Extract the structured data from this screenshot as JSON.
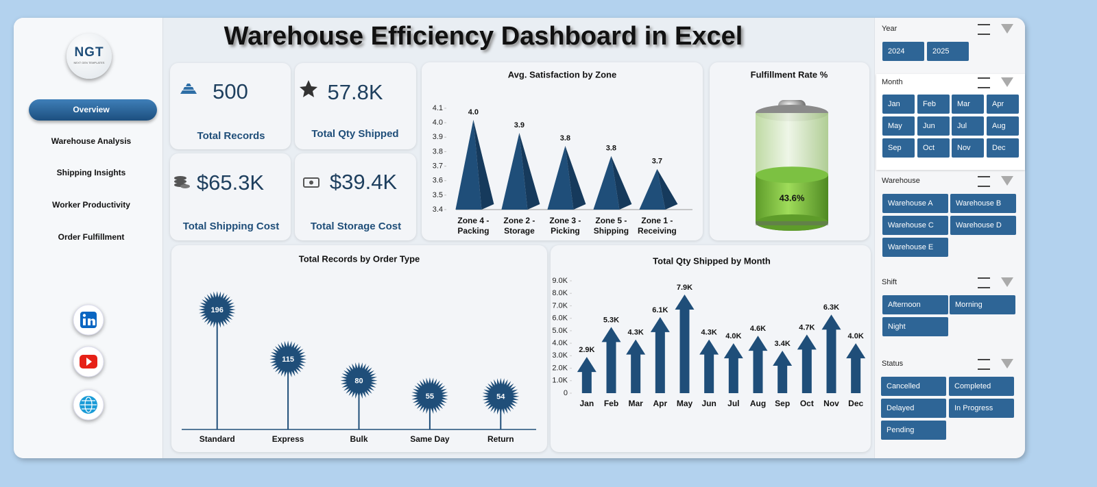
{
  "header": {
    "title": "Warehouse Efficiency Dashboard in Excel"
  },
  "logo": {
    "text": "NGT",
    "tagline": "NEXT GEN TEMPLATES"
  },
  "nav": [
    "Overview",
    "Warehouse Analysis",
    "Shipping Insights",
    "Worker Productivity",
    "Order Fulfillment"
  ],
  "kpis": [
    {
      "value": "500",
      "label": "Total Records"
    },
    {
      "value": "57.8K",
      "label": "Total Qty Shipped"
    },
    {
      "value": "$65.3K",
      "label": "Total Shipping Cost"
    },
    {
      "value": "$39.4K",
      "label": "Total Storage Cost"
    }
  ],
  "chart_data": [
    {
      "type": "pyramid",
      "title": "Avg. Satisfaction by Zone",
      "categories": [
        "Zone 4 - Packing",
        "Zone 2 - Storage",
        "Zone 3 - Picking",
        "Zone 5 - Shipping",
        "Zone 1 - Receiving"
      ],
      "values": [
        4.02,
        3.93,
        3.84,
        3.77,
        3.68
      ],
      "value_labels": [
        "4.0",
        "3.9",
        "3.8",
        "3.8",
        "3.7"
      ],
      "color": "#1f4e79",
      "ylim": [
        3.4,
        4.1
      ],
      "yticks": [
        3.4,
        3.5,
        3.6,
        3.7,
        3.8,
        3.9,
        {
          "value": 4,
          "label": "4.0"
        },
        4.1
      ]
    },
    {
      "type": "battery",
      "title": "Fulfillment Rate %",
      "values": [
        43.6
      ],
      "value_labels": [
        "43.6%"
      ],
      "ylim": [
        0,
        100
      ],
      "color": "#7cc142"
    },
    {
      "type": "lollipop",
      "title": "Total Records by Order Type",
      "categories": [
        "Standard",
        "Express",
        "Bulk",
        "Same Day",
        "Return"
      ],
      "values": [
        196,
        115,
        80,
        55,
        54
      ],
      "color": "#1f4e79"
    },
    {
      "type": "arrow",
      "title": "Total Qty Shipped by Month",
      "categories": [
        "Jan",
        "Feb",
        "Mar",
        "Apr",
        "May",
        "Jun",
        "Jul",
        "Aug",
        "Sep",
        "Oct",
        "Nov",
        "Dec"
      ],
      "values": [
        2900,
        5300,
        4300,
        6100,
        7900,
        4300,
        4000,
        4600,
        3400,
        4700,
        6300,
        4000
      ],
      "value_labels": [
        "2.9K",
        "5.3K",
        "4.3K",
        "6.1K",
        "7.9K",
        "4.3K",
        "4.0K",
        "4.6K",
        "3.4K",
        "4.7K",
        "6.3K",
        "4.0K"
      ],
      "color": "#1f4e79",
      "ylim": [
        0,
        9000
      ],
      "yticks": [
        0,
        {
          "value": 1000,
          "label": "1.0K"
        },
        {
          "value": 2000,
          "label": "2.0K"
        },
        {
          "value": 3000,
          "label": "3.0K"
        },
        {
          "value": 4000,
          "label": "4.0K"
        },
        {
          "value": 5000,
          "label": "5.0K"
        },
        {
          "value": 6000,
          "label": "6.0K"
        },
        {
          "value": 7000,
          "label": "7.0K"
        },
        {
          "value": 8000,
          "label": "8.0K"
        },
        {
          "value": 9000,
          "label": "9.0K"
        }
      ]
    }
  ],
  "slicers": [
    {
      "title": "Year",
      "items": [
        "2024",
        "2025"
      ]
    },
    {
      "title": "Month",
      "items": [
        "Jan",
        "Feb",
        "Mar",
        "Apr",
        "May",
        "Jun",
        "Jul",
        "Aug",
        "Sep",
        "Oct",
        "Nov",
        "Dec"
      ]
    },
    {
      "title": "Warehouse",
      "items": [
        "Warehouse A",
        "Warehouse B",
        "Warehouse C",
        "Warehouse D",
        "Warehouse E"
      ]
    },
    {
      "title": "Shift",
      "items": [
        "Afternoon",
        "Morning",
        "Night"
      ]
    },
    {
      "title": "Status",
      "items": [
        "Cancelled",
        "Completed",
        "Delayed",
        "In Progress",
        "Pending"
      ]
    }
  ]
}
